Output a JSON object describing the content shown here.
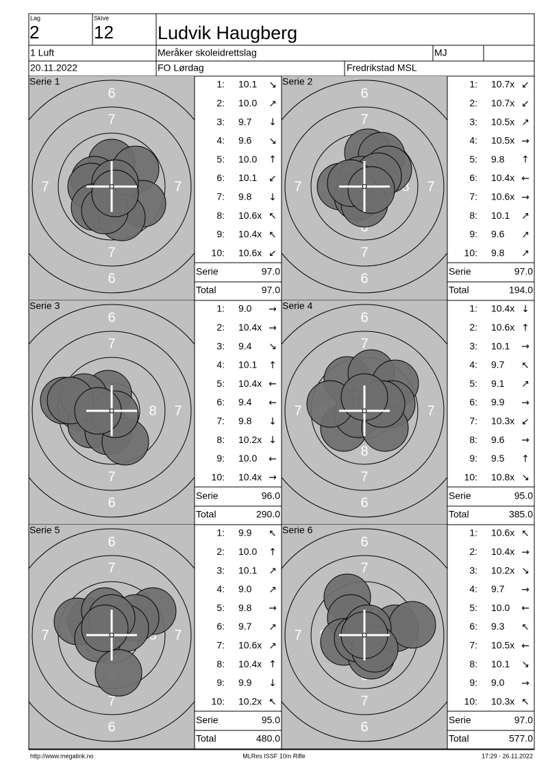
{
  "header": {
    "lag_label": "Lag",
    "lag": "2",
    "skive_label": "Skive",
    "skive": "12",
    "name": "Ludvik Haugberg",
    "class": "1 Luft",
    "club": "Meråker skoleidrettslag",
    "code": "MJ",
    "date": "20.11.2022",
    "event": "FO Lørdag",
    "location": "Fredrikstad MSL"
  },
  "target_labels": {
    "r6": "6",
    "r7": "7",
    "r8": "8"
  },
  "series": [
    {
      "title": "Serie 1",
      "shots": [
        {
          "n": "1:",
          "score": "10.1",
          "dir": "↘"
        },
        {
          "n": "2:",
          "score": "10.0",
          "dir": "↗"
        },
        {
          "n": "3:",
          "score": "9.7",
          "dir": "↓"
        },
        {
          "n": "4:",
          "score": "9.6",
          "dir": "↘"
        },
        {
          "n": "5:",
          "score": "10.0",
          "dir": "↑"
        },
        {
          "n": "6:",
          "score": "10.1",
          "dir": "↙"
        },
        {
          "n": "7:",
          "score": "9.8",
          "dir": "↓"
        },
        {
          "n": "8:",
          "score": "10.6x",
          "dir": "↖"
        },
        {
          "n": "9:",
          "score": "10.4x",
          "dir": "↖"
        },
        {
          "n": "10:",
          "score": "10.6x",
          "dir": "↙"
        }
      ],
      "serie_label": "Serie",
      "serie_sum": "97.0",
      "total_label": "Total",
      "total_sum": "97.0"
    },
    {
      "title": "Serie 2",
      "shots": [
        {
          "n": "1:",
          "score": "10.7x",
          "dir": "↙"
        },
        {
          "n": "2:",
          "score": "10.7x",
          "dir": "↙"
        },
        {
          "n": "3:",
          "score": "10.5x",
          "dir": "↗"
        },
        {
          "n": "4:",
          "score": "10.5x",
          "dir": "→"
        },
        {
          "n": "5:",
          "score": "9.8",
          "dir": "↑"
        },
        {
          "n": "6:",
          "score": "10.4x",
          "dir": "←"
        },
        {
          "n": "7:",
          "score": "10.6x",
          "dir": "→"
        },
        {
          "n": "8:",
          "score": "10.1",
          "dir": "↗"
        },
        {
          "n": "9:",
          "score": "9.6",
          "dir": "↗"
        },
        {
          "n": "10:",
          "score": "9.8",
          "dir": "↗"
        }
      ],
      "serie_label": "Serie",
      "serie_sum": "97.0",
      "total_label": "Total",
      "total_sum": "194.0"
    },
    {
      "title": "Serie 3",
      "shots": [
        {
          "n": "1:",
          "score": "9.0",
          "dir": "→"
        },
        {
          "n": "2:",
          "score": "10.4x",
          "dir": "→"
        },
        {
          "n": "3:",
          "score": "9.4",
          "dir": "↘"
        },
        {
          "n": "4:",
          "score": "10.1",
          "dir": "↑"
        },
        {
          "n": "5:",
          "score": "10.4x",
          "dir": "←"
        },
        {
          "n": "6:",
          "score": "9.4",
          "dir": "←"
        },
        {
          "n": "7:",
          "score": "9.8",
          "dir": "↓"
        },
        {
          "n": "8:",
          "score": "10.2x",
          "dir": "↓"
        },
        {
          "n": "9:",
          "score": "10.0",
          "dir": "←"
        },
        {
          "n": "10:",
          "score": "10.4x",
          "dir": "→"
        }
      ],
      "serie_label": "Serie",
      "serie_sum": "96.0",
      "total_label": "Total",
      "total_sum": "290.0"
    },
    {
      "title": "Serie 4",
      "shots": [
        {
          "n": "1:",
          "score": "10.4x",
          "dir": "↓"
        },
        {
          "n": "2:",
          "score": "10.6x",
          "dir": "↑"
        },
        {
          "n": "3:",
          "score": "10.1",
          "dir": "→"
        },
        {
          "n": "4:",
          "score": "9.7",
          "dir": "↖"
        },
        {
          "n": "5:",
          "score": "9.1",
          "dir": "↗"
        },
        {
          "n": "6:",
          "score": "9.9",
          "dir": "→"
        },
        {
          "n": "7:",
          "score": "10.3x",
          "dir": "↙"
        },
        {
          "n": "8:",
          "score": "9.6",
          "dir": "→"
        },
        {
          "n": "9:",
          "score": "9.5",
          "dir": "↑"
        },
        {
          "n": "10:",
          "score": "10.8x",
          "dir": "↘"
        }
      ],
      "serie_label": "Serie",
      "serie_sum": "95.0",
      "total_label": "Total",
      "total_sum": "385.0"
    },
    {
      "title": "Serie 5",
      "shots": [
        {
          "n": "1:",
          "score": "9.9",
          "dir": "↖"
        },
        {
          "n": "2:",
          "score": "10.0",
          "dir": "↑"
        },
        {
          "n": "3:",
          "score": "10.1",
          "dir": "↗"
        },
        {
          "n": "4:",
          "score": "9.0",
          "dir": "↗"
        },
        {
          "n": "5:",
          "score": "9.8",
          "dir": "→"
        },
        {
          "n": "6:",
          "score": "9.7",
          "dir": "↗"
        },
        {
          "n": "7:",
          "score": "10.6x",
          "dir": "↗"
        },
        {
          "n": "8:",
          "score": "10.4x",
          "dir": "↑"
        },
        {
          "n": "9:",
          "score": "9.9",
          "dir": "↓"
        },
        {
          "n": "10:",
          "score": "10.2x",
          "dir": "↖"
        }
      ],
      "serie_label": "Serie",
      "serie_sum": "95.0",
      "total_label": "Total",
      "total_sum": "480.0"
    },
    {
      "title": "Serie 6",
      "shots": [
        {
          "n": "1:",
          "score": "10.6x",
          "dir": "↖"
        },
        {
          "n": "2:",
          "score": "10.4x",
          "dir": "→"
        },
        {
          "n": "3:",
          "score": "10.2x",
          "dir": "↘"
        },
        {
          "n": "4:",
          "score": "9.7",
          "dir": "→"
        },
        {
          "n": "5:",
          "score": "10.0",
          "dir": "←"
        },
        {
          "n": "6:",
          "score": "9.3",
          "dir": "↖"
        },
        {
          "n": "7:",
          "score": "10.5x",
          "dir": "←"
        },
        {
          "n": "8:",
          "score": "10.1",
          "dir": "↘"
        },
        {
          "n": "9:",
          "score": "9.0",
          "dir": "→"
        },
        {
          "n": "10:",
          "score": "10.3x",
          "dir": "↖"
        }
      ],
      "serie_label": "Serie",
      "serie_sum": "97.0",
      "total_label": "Total",
      "total_sum": "577.0"
    }
  ],
  "footer": {
    "url": "http://www.megalink.no",
    "program": "MLRes ISSF 10m Rifle",
    "timestamp": "17:29 - 26.11.2022"
  }
}
